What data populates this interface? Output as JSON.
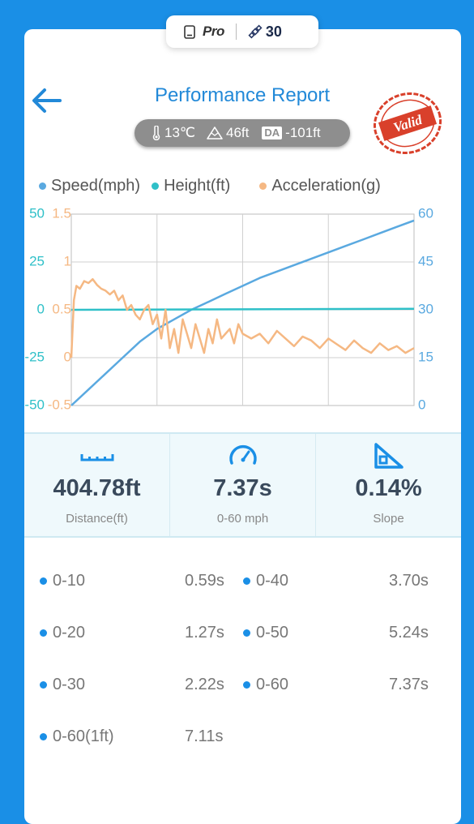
{
  "top_badge": {
    "device_icon": "device-icon",
    "pro_label": "Pro",
    "satellite_icon": "satellite-icon",
    "satellite_count": "30"
  },
  "header": {
    "title": "Performance Report",
    "back_icon": "arrow-left-icon",
    "stamp_text": "Valid",
    "stamp_color": "#d9402b"
  },
  "conditions": {
    "temperature": "13℃",
    "altitude": "46ft",
    "da_tag": "DA",
    "density_altitude": "-101ft"
  },
  "legend": [
    {
      "label": "Speed(mph)",
      "color": "#5aa9e0"
    },
    {
      "label": "Height(ft)",
      "color": "#2fc0c8"
    },
    {
      "label": "Acceleration(g)",
      "color": "#f5b883"
    }
  ],
  "chart_data": {
    "type": "line",
    "grid": true,
    "x_range": [
      0,
      4
    ],
    "axes": {
      "height_axis": {
        "ticks": [
          "50",
          "25",
          "0",
          "-25",
          "-50"
        ],
        "range": [
          -50,
          50
        ],
        "color": "#2fc0c8"
      },
      "accel_axis": {
        "ticks": [
          "1.5",
          "1",
          "0.5",
          "0",
          "-0.5"
        ],
        "range": [
          -0.5,
          1.5
        ],
        "color": "#f5b883"
      },
      "speed_axis": {
        "ticks": [
          "60",
          "45",
          "30",
          "15",
          "0"
        ],
        "range": [
          0,
          60
        ],
        "color": "#5aa9e0"
      }
    },
    "series": [
      {
        "name": "Speed(mph)",
        "axis": "speed",
        "color": "#5aa9e0",
        "x": [
          0,
          0.2,
          0.4,
          0.6,
          0.8,
          1.0,
          1.2,
          1.4,
          1.6,
          1.8,
          2.0,
          2.2,
          2.4,
          2.6,
          2.8,
          3.0,
          3.2,
          3.4,
          3.6,
          3.8,
          4.0
        ],
        "y": [
          0,
          5,
          10,
          15,
          20,
          24,
          27,
          30,
          32.5,
          35,
          37.5,
          40,
          42,
          44,
          46,
          48,
          50,
          52,
          54,
          56,
          58
        ]
      },
      {
        "name": "Height(ft)",
        "axis": "height",
        "color": "#2fc0c8",
        "x": [
          0,
          4
        ],
        "y": [
          0,
          0.5
        ]
      },
      {
        "name": "Acceleration(g)",
        "axis": "accel",
        "color": "#f5b883",
        "x": [
          0,
          0.03,
          0.06,
          0.1,
          0.15,
          0.2,
          0.25,
          0.3,
          0.35,
          0.4,
          0.45,
          0.5,
          0.55,
          0.6,
          0.65,
          0.7,
          0.75,
          0.8,
          0.85,
          0.9,
          0.95,
          1.0,
          1.05,
          1.1,
          1.15,
          1.2,
          1.25,
          1.3,
          1.35,
          1.4,
          1.45,
          1.5,
          1.55,
          1.6,
          1.65,
          1.7,
          1.75,
          1.8,
          1.85,
          1.9,
          1.95,
          2.0,
          2.1,
          2.2,
          2.3,
          2.4,
          2.5,
          2.6,
          2.7,
          2.8,
          2.9,
          3.0,
          3.1,
          3.2,
          3.3,
          3.4,
          3.5,
          3.6,
          3.7,
          3.8,
          3.9,
          4.0
        ],
        "y": [
          0,
          0.6,
          0.75,
          0.72,
          0.8,
          0.78,
          0.82,
          0.76,
          0.72,
          0.7,
          0.66,
          0.7,
          0.6,
          0.65,
          0.5,
          0.55,
          0.45,
          0.4,
          0.5,
          0.55,
          0.35,
          0.45,
          0.2,
          0.5,
          0.1,
          0.3,
          0.05,
          0.4,
          0.25,
          0.1,
          0.35,
          0.2,
          0.05,
          0.3,
          0.15,
          0.4,
          0.2,
          0.25,
          0.3,
          0.15,
          0.35,
          0.25,
          0.2,
          0.25,
          0.15,
          0.28,
          0.2,
          0.12,
          0.22,
          0.18,
          0.1,
          0.2,
          0.14,
          0.08,
          0.18,
          0.1,
          0.05,
          0.15,
          0.08,
          0.12,
          0.05,
          0.1
        ]
      }
    ]
  },
  "stats": [
    {
      "icon": "ruler-icon",
      "value": "404.78ft",
      "label": "Distance(ft)"
    },
    {
      "icon": "speedometer-icon",
      "value": "7.37s",
      "label": "0-60 mph"
    },
    {
      "icon": "slope-icon",
      "value": "0.14%",
      "label": "Slope"
    }
  ],
  "splits": [
    {
      "name": "0-10",
      "time": "0.59s"
    },
    {
      "name": "0-40",
      "time": "3.70s"
    },
    {
      "name": "0-20",
      "time": "1.27s"
    },
    {
      "name": "0-50",
      "time": "5.24s"
    },
    {
      "name": "0-30",
      "time": "2.22s"
    },
    {
      "name": "0-60",
      "time": "7.37s"
    },
    {
      "name": "0-60(1ft)",
      "time": "7.11s"
    }
  ]
}
